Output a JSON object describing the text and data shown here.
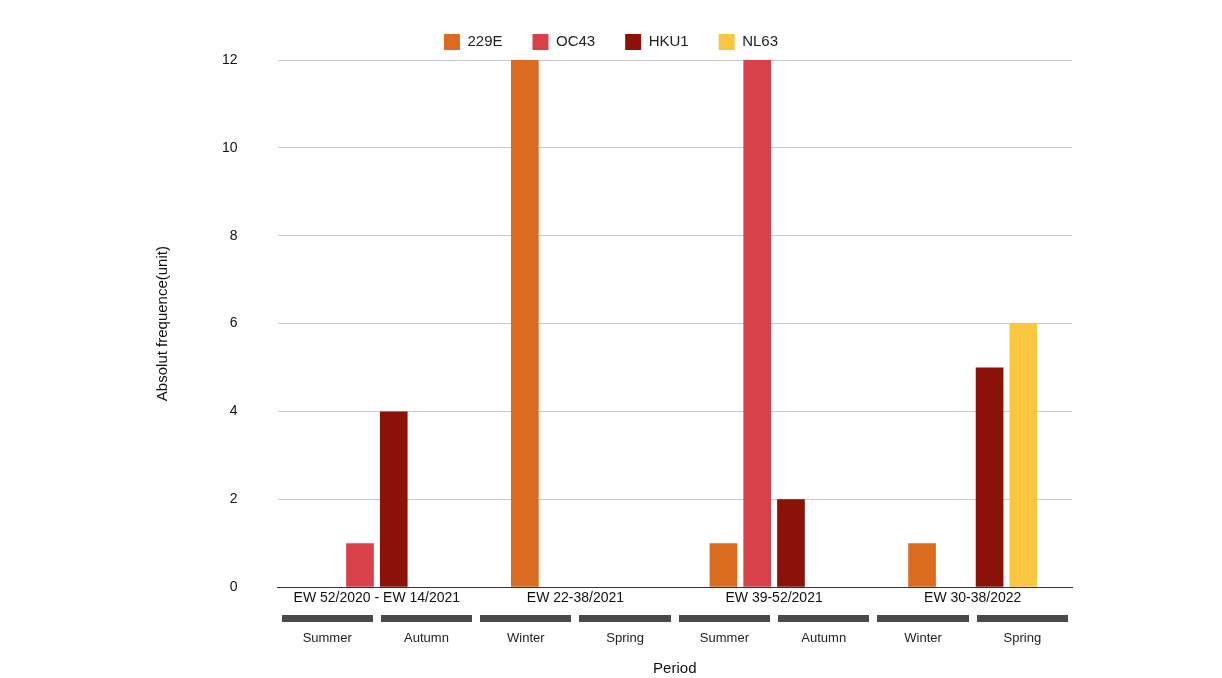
{
  "chart_data": {
    "type": "bar",
    "categories": [
      "EW 52/2020 - EW 14/2021",
      "EW 22-38/2021",
      "EW 39-52/2021",
      "EW 30-38/2022"
    ],
    "series": [
      {
        "name": "229E",
        "color": "#db6c1f",
        "values": [
          0,
          12,
          1,
          1
        ]
      },
      {
        "name": "OC43",
        "color": "#d8414a",
        "values": [
          1,
          0,
          12,
          0
        ]
      },
      {
        "name": "HKU1",
        "color": "#8a1208",
        "values": [
          4,
          0,
          2,
          5
        ]
      },
      {
        "name": "NL63",
        "color": "#fbc63f",
        "values": [
          0,
          0,
          0,
          6
        ]
      }
    ],
    "xlabel": "Period",
    "ylabel": "Absolut frequence(unit)",
    "ylim": [
      0,
      12
    ],
    "yticks": [
      0,
      2,
      4,
      6,
      8,
      10,
      12
    ],
    "grid": "y",
    "legend": "top",
    "annotations": [
      "Summer",
      "Autumn",
      "Winter",
      "Spring",
      "Summer",
      "Autumn",
      "Winter",
      "Spring"
    ]
  }
}
